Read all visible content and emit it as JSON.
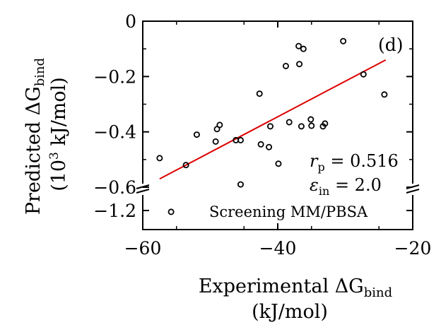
{
  "chart_data": {
    "type": "scatter",
    "panel_label": "(d)",
    "xlabel_line1": "Experimental ΔG",
    "xlabel_sub": "bind",
    "xlabel_line2": "(kJ/mol)",
    "ylabel_line1": "Predicted ΔG",
    "ylabel_sub": "bind",
    "ylabel_line2_pre": "(10",
    "ylabel_line2_sup": "3",
    "ylabel_line2_post": " kJ/mol)",
    "xlim": [
      -60,
      -20
    ],
    "ylim_upper": [
      -0.65,
      0
    ],
    "ylim_lower": [
      -1.33,
      -1.1
    ],
    "axis_break": "y between -0.65 and -1.1",
    "x_ticks": [
      -60,
      -40,
      -20
    ],
    "x_tick_labels": [
      "−60",
      "−40",
      "−20"
    ],
    "y_ticks": [
      0,
      -0.2,
      -0.4,
      -0.6,
      -1.2
    ],
    "y_tick_labels": [
      "0",
      "−0.2",
      "−0.4",
      "−0.6",
      "−1.2"
    ],
    "annotations": {
      "r_sym": "r",
      "r_sub": "p",
      "r_val": " = 0.516",
      "eps_sym": "ε",
      "eps_sub": "in",
      "eps_val": " = 2.0",
      "method": "Screening MM/PBSA"
    },
    "marker_color": "#000000",
    "fit_color": "#dd0000",
    "fit_line": {
      "x": [
        -57.5,
        -24
      ],
      "y": [
        -0.57,
        -0.14
      ]
    },
    "points": [
      {
        "x": -57.5,
        "y": -0.495
      },
      {
        "x": -55.8,
        "y": -1.235
      },
      {
        "x": -53.6,
        "y": -0.52
      },
      {
        "x": -52.0,
        "y": -0.41
      },
      {
        "x": -49.2,
        "y": -0.435
      },
      {
        "x": -49.0,
        "y": -0.39
      },
      {
        "x": -48.6,
        "y": -0.375
      },
      {
        "x": -46.2,
        "y": -0.43
      },
      {
        "x": -45.5,
        "y": -0.43
      },
      {
        "x": -45.5,
        "y": -0.59
      },
      {
        "x": -42.7,
        "y": -0.262
      },
      {
        "x": -42.5,
        "y": -0.445
      },
      {
        "x": -41.3,
        "y": -0.455
      },
      {
        "x": -41.1,
        "y": -0.38
      },
      {
        "x": -39.9,
        "y": -0.515
      },
      {
        "x": -38.8,
        "y": -0.162
      },
      {
        "x": -38.3,
        "y": -0.365
      },
      {
        "x": -36.9,
        "y": -0.09
      },
      {
        "x": -36.8,
        "y": -0.155
      },
      {
        "x": -36.5,
        "y": -0.38
      },
      {
        "x": -36.2,
        "y": -0.1
      },
      {
        "x": -35.1,
        "y": -0.355
      },
      {
        "x": -35.0,
        "y": -0.378
      },
      {
        "x": -33.3,
        "y": -0.38
      },
      {
        "x": -33.0,
        "y": -0.37
      },
      {
        "x": -30.3,
        "y": -0.072
      },
      {
        "x": -27.3,
        "y": -0.192
      },
      {
        "x": -24.2,
        "y": -0.265
      }
    ]
  }
}
